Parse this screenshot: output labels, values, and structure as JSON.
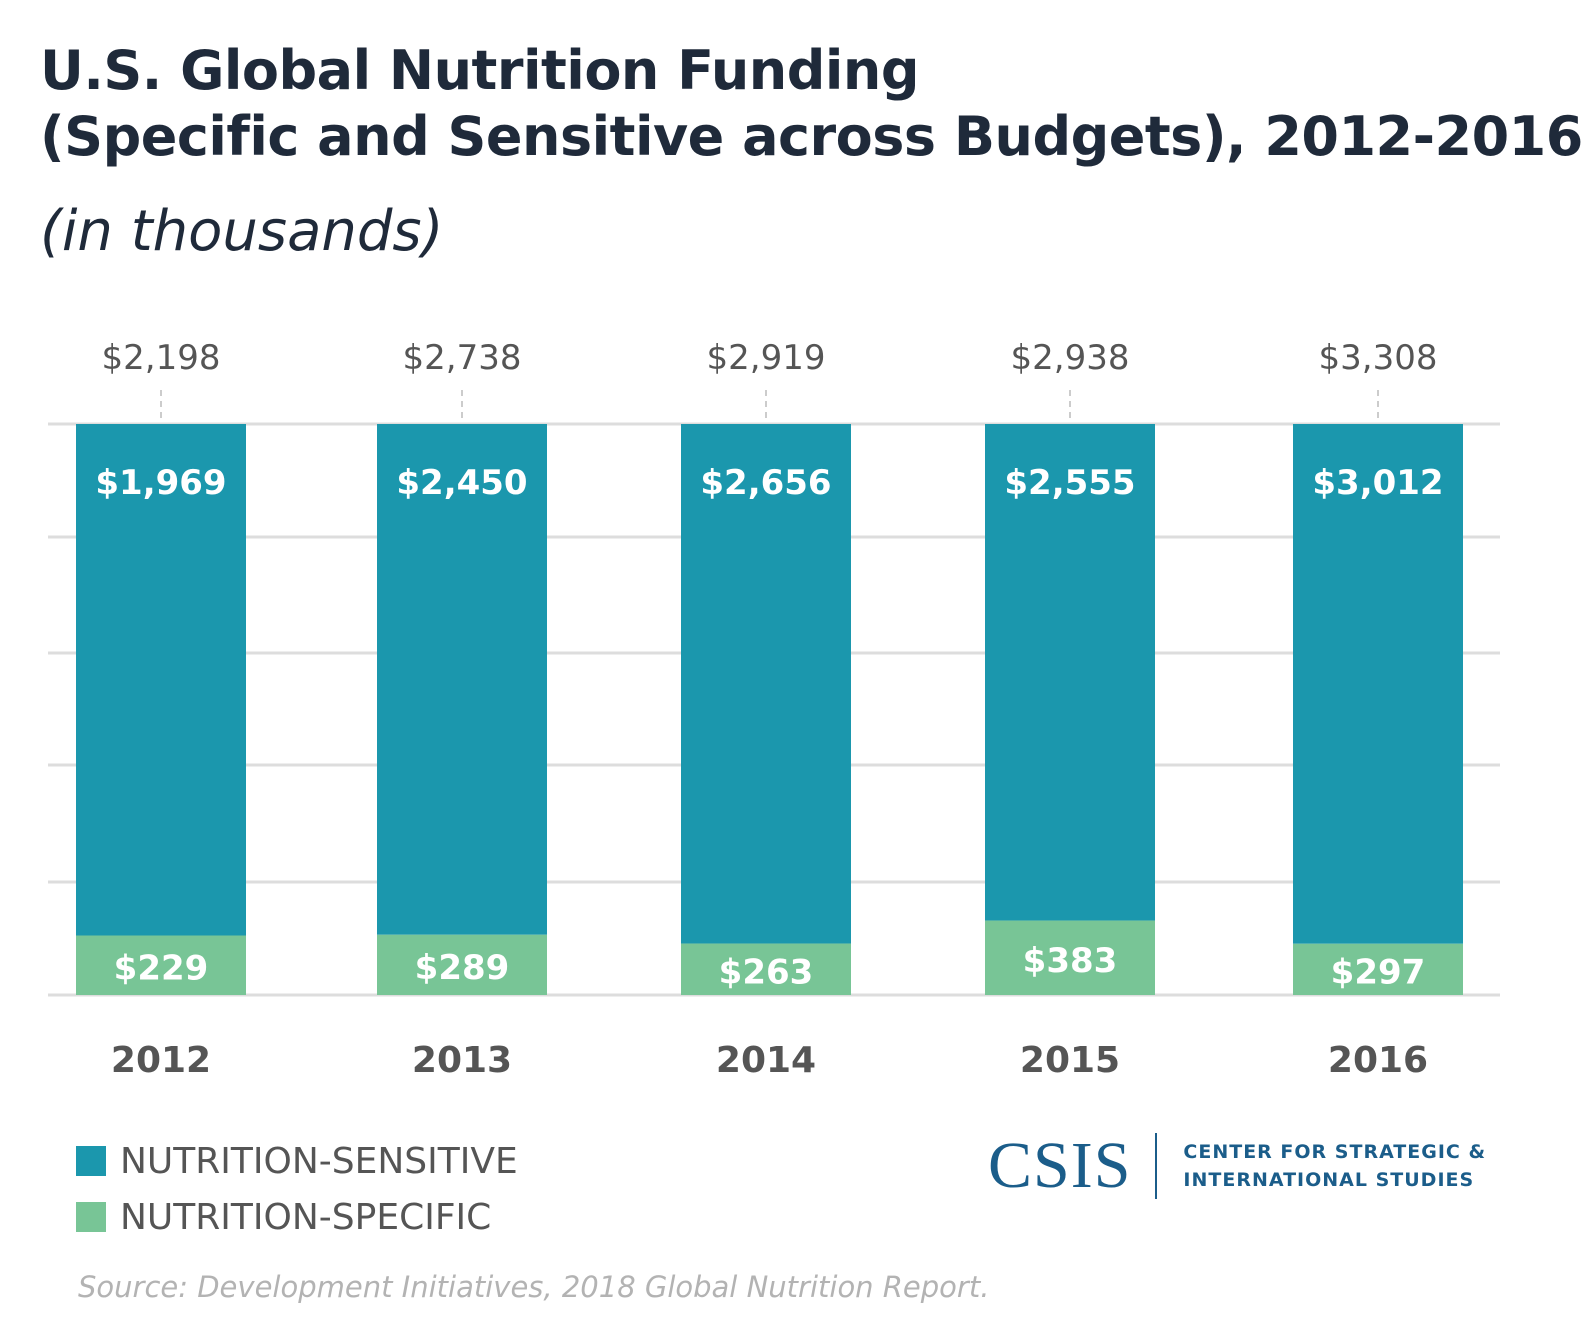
{
  "title_line1": "U.S. Global Nutrition Funding",
  "title_line2": "(Specific and Sensitive across Budgets), 2012-2016",
  "subtitle": "(in thousands)",
  "source": "Source: Development Initiatives, 2018 Global Nutrition Report.",
  "logo": {
    "mark": "CSIS",
    "line1": "CENTER FOR STRATEGIC &",
    "line2": "INTERNATIONAL STUDIES"
  },
  "colors": {
    "sensitive": "#1b97ad",
    "specific": "#78c596",
    "grid": "#dddddd",
    "total_label": "#555555",
    "category_label": "#555555"
  },
  "chart_data": {
    "type": "bar",
    "stacked": true,
    "categories": [
      "2012",
      "2013",
      "2014",
      "2015",
      "2016"
    ],
    "series": [
      {
        "name": "NUTRITION-SPECIFIC",
        "values": [
          229,
          289,
          263,
          383,
          297
        ],
        "labels": [
          "$229",
          "$289",
          "$263",
          "$383",
          "$297"
        ]
      },
      {
        "name": "NUTRITION-SENSITIVE",
        "values": [
          1969,
          2450,
          2656,
          2555,
          3012
        ],
        "labels": [
          "$1,969",
          "$2,450",
          "$2,656",
          "$2,555",
          "$3,012"
        ]
      }
    ],
    "totals": [
      "$2,198",
      "$2,738",
      "$2,919",
      "$2,938",
      "$3,308"
    ],
    "legend": [
      "NUTRITION-SENSITIVE",
      "NUTRITION-SPECIFIC"
    ],
    "legend_position": "bottom-left",
    "grid": true,
    "normalized": true
  }
}
